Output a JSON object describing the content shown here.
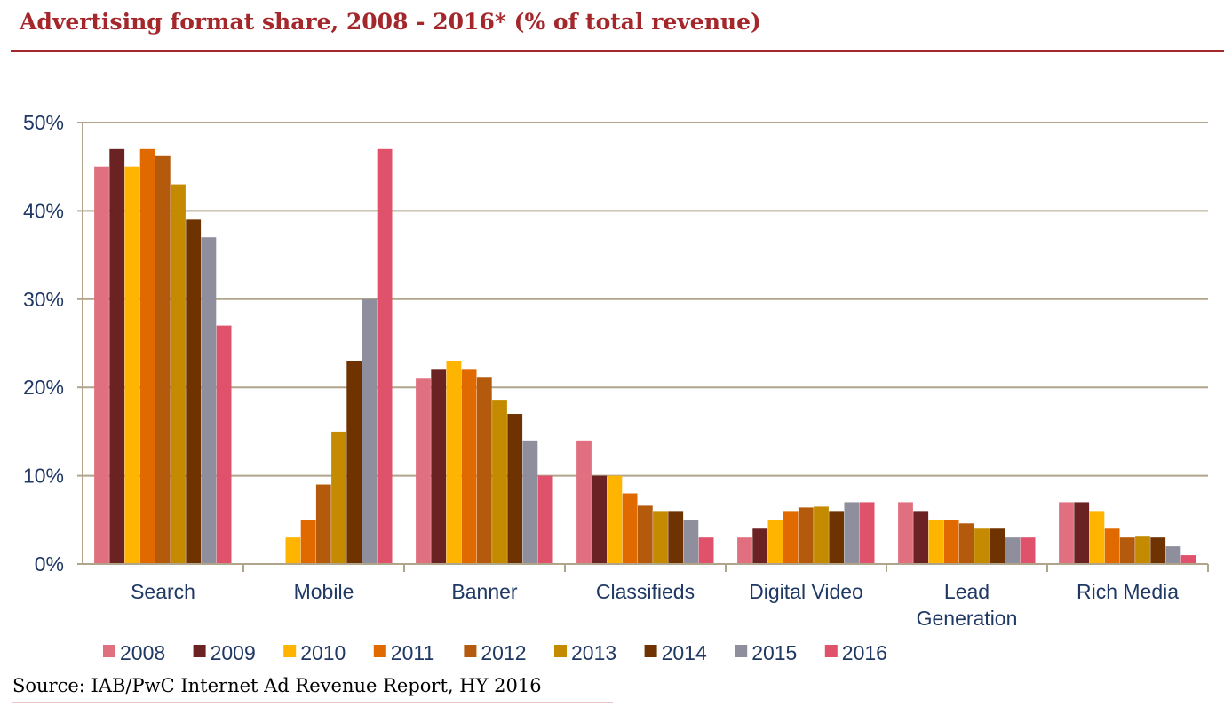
{
  "header": {
    "title": "Advertising format share, 2008 - 2016* (% of total revenue)"
  },
  "footer": {
    "source": "Source: IAB/PwC Internet Ad Revenue Report, HY 2016"
  },
  "chart_data": {
    "type": "bar",
    "categories": [
      "Search",
      "Mobile",
      "Banner",
      "Classifieds",
      "Digital Video",
      "Lead Generation",
      "Rich Media"
    ],
    "category_lines": [
      [
        "Search"
      ],
      [
        "Mobile"
      ],
      [
        "Banner"
      ],
      [
        "Classifieds"
      ],
      [
        "Digital Video"
      ],
      [
        "Lead",
        "Generation"
      ],
      [
        "Rich Media"
      ]
    ],
    "series": [
      {
        "name": "2008",
        "color": "#e0707f",
        "values": [
          45,
          0,
          21,
          14,
          3,
          7,
          7
        ]
      },
      {
        "name": "2009",
        "color": "#6b2222",
        "values": [
          47,
          0,
          22,
          10,
          4,
          6,
          7
        ]
      },
      {
        "name": "2010",
        "color": "#ffb400",
        "values": [
          45,
          3,
          23,
          10,
          5,
          5,
          6
        ]
      },
      {
        "name": "2011",
        "color": "#e06a00",
        "values": [
          47,
          5,
          22,
          8,
          6,
          5,
          4
        ]
      },
      {
        "name": "2012",
        "color": "#b45a0c",
        "values": [
          46.2,
          9,
          21.1,
          6.6,
          6.4,
          4.6,
          3
        ]
      },
      {
        "name": "2013",
        "color": "#c48a00",
        "values": [
          43,
          15,
          18.6,
          6,
          6.5,
          4,
          3.1
        ]
      },
      {
        "name": "2014",
        "color": "#6e3300",
        "values": [
          39,
          23,
          17,
          6,
          6,
          4,
          3
        ]
      },
      {
        "name": "2015",
        "color": "#8e8e9c",
        "values": [
          37,
          30,
          14,
          5,
          7,
          3,
          2
        ]
      },
      {
        "name": "2016",
        "color": "#e0526b",
        "values": [
          27,
          47,
          10,
          3,
          7,
          3,
          1
        ]
      }
    ],
    "y_ticks": [
      "0%",
      "10%",
      "20%",
      "30%",
      "40%",
      "50%"
    ],
    "ylim": [
      0,
      50
    ],
    "grid": true,
    "legend": "bottom",
    "gridline_color": "#b0a58a",
    "axis_text_color": "#1f3864"
  }
}
